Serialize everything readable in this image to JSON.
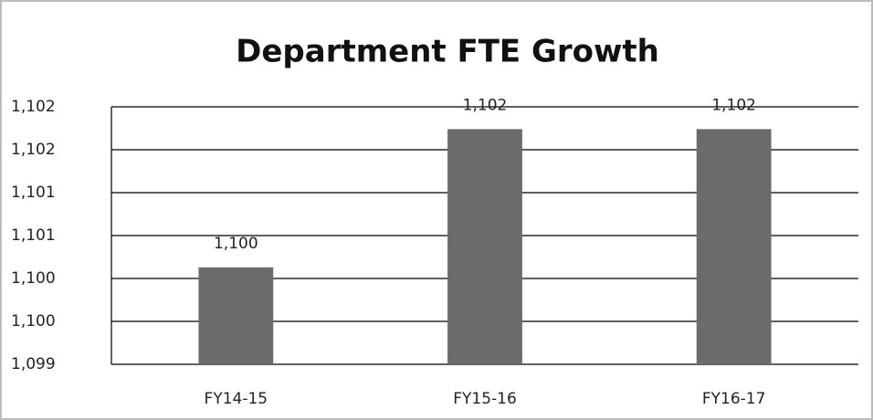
{
  "chart_data": {
    "type": "bar",
    "title": "Department FTE Growth",
    "categories": [
      "FY14-15",
      "FY15-16",
      "FY16-17"
    ],
    "values": [
      1100.13,
      1101.74,
      1101.74
    ],
    "value_labels": [
      "1,100",
      "1,102",
      "1,102"
    ],
    "color": "#6b6b6b",
    "ylim": [
      1099,
      1102
    ],
    "yticks": [
      {
        "value": 1099,
        "label": "1,099"
      },
      {
        "value": 1099.5,
        "label": "1,100"
      },
      {
        "value": 1100,
        "label": "1,100"
      },
      {
        "value": 1100.5,
        "label": "1,101"
      },
      {
        "value": 1101,
        "label": "1,101"
      },
      {
        "value": 1101.5,
        "label": "1,102"
      },
      {
        "value": 1102,
        "label": "1,102"
      }
    ],
    "grid": true
  }
}
